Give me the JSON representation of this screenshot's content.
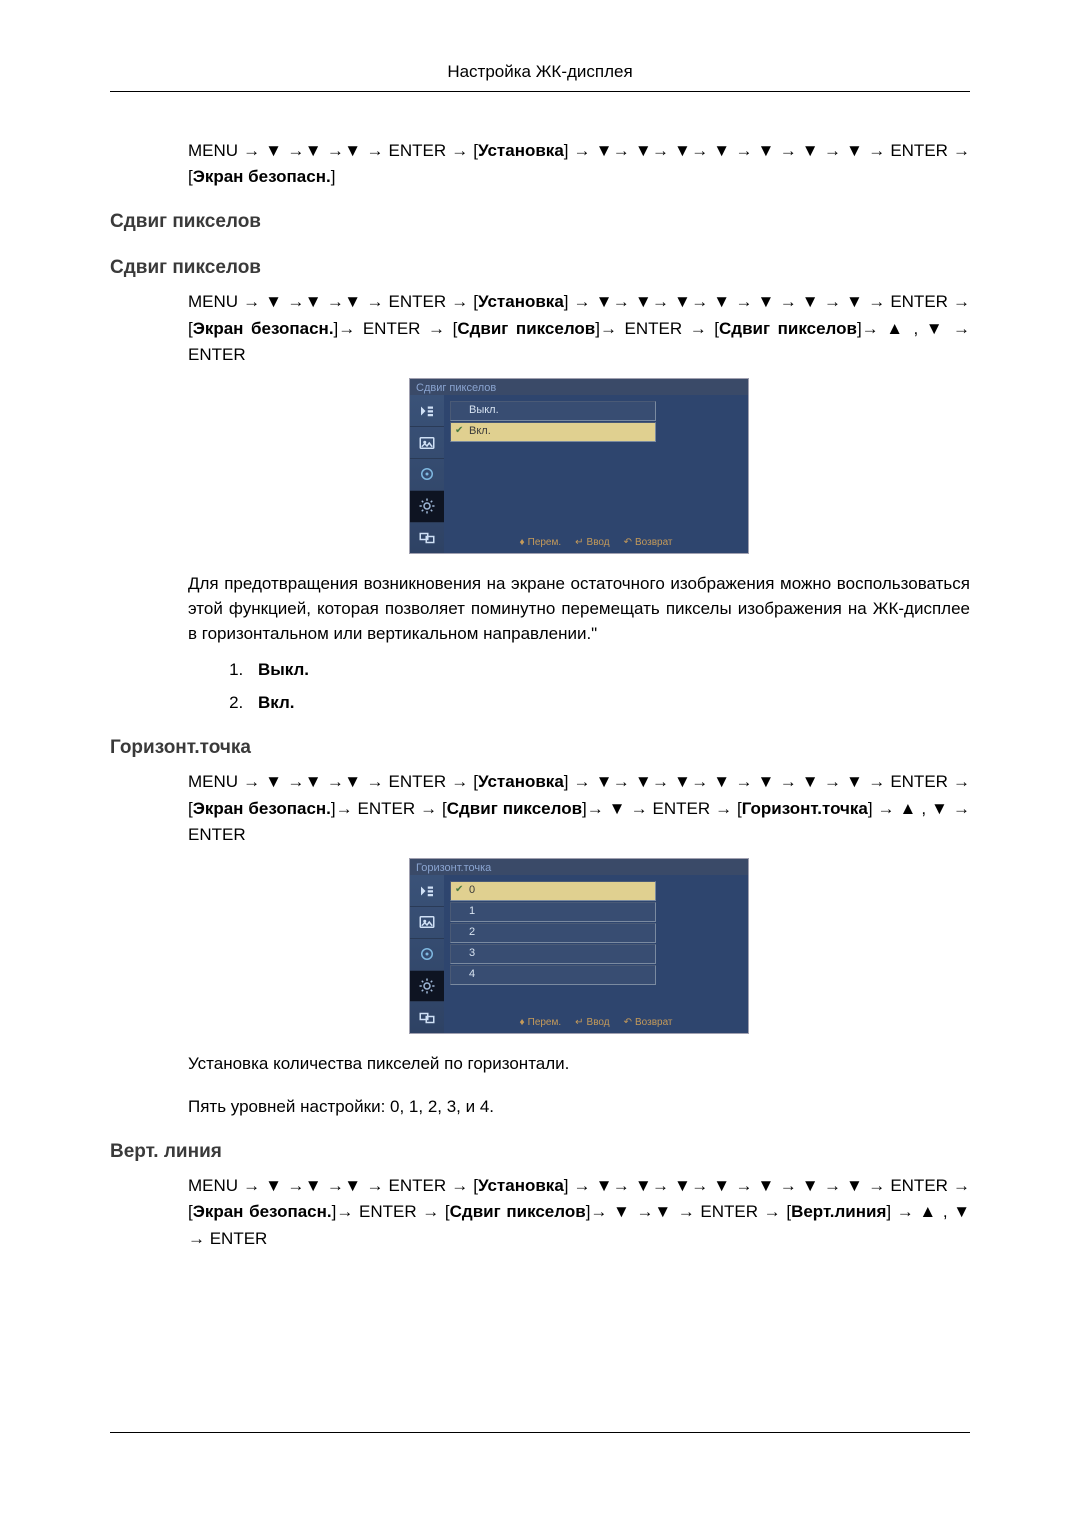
{
  "page": {
    "header": "Настройка ЖК-дисплея"
  },
  "nav_tokens": {
    "menu": "MENU",
    "enter": "ENTER",
    "arrow_right": "→",
    "arrow_down": "▼",
    "arrow_up": "▲",
    "bracket_install": "Установка",
    "bracket_screen_saf": "Экран безопасн.",
    "bracket_pixel_shift": "Сдвиг пикселов",
    "bracket_horiz_dot": "Горизонт.точка",
    "bracket_vert_line": "Верт.линия"
  },
  "section0": {
    "nav_html": "MENU → ▼ →▼ →▼ → ENTER → [<b>Установка</b>] → ▼→ ▼→ ▼→ ▼ → ▼ → ▼ → ▼ → ENTER → [<b>Экран безопасн.</b>]"
  },
  "section1": {
    "title_a": "Сдвиг пикселов",
    "title_b": "Сдвиг пикселов",
    "nav_html": "MENU → ▼ →▼ →▼ → ENTER → [<b>Установка</b>] → ▼→ ▼→ ▼→ ▼ → ▼ → ▼ → ▼ → ENTER → [<b>Экран безопасн.</b>]→ ENTER → [<b>Сдвиг пикселов</b>]→ ENTER → [<b>Сдвиг пикселов</b>]→ ▲ , ▼ → ENTER",
    "menu": {
      "title": "Сдвиг пикселов",
      "rows": [
        {
          "label": "Выкл.",
          "selected": false
        },
        {
          "label": "Вкл.",
          "selected": true
        }
      ],
      "footer": [
        "Перем.",
        "Ввод",
        "Возврат"
      ]
    },
    "body": "Для предотвращения возникновения на экране остаточного изображения можно воспользоваться этой функцией, которая позволяет поминутно перемещать пикселы изображения на ЖК-дисплее в горизонтальном или вертикальном направлении.\"",
    "options": [
      "Выкл.",
      "Вкл."
    ]
  },
  "section2": {
    "title": "Горизонт.точка",
    "nav_html": "MENU → ▼ →▼ →▼ → ENTER → [<b>Установка</b>] → ▼→ ▼→ ▼→ ▼ → ▼ → ▼ → ▼ → ENTER → [<b>Экран безопасн.</b>]→ ENTER → [<b>Сдвиг пикселов</b>]→ ▼ → ENTER → [<b>Горизонт.точка</b>] → ▲ , ▼ → ENTER",
    "menu": {
      "title": "Горизонт.точка",
      "rows": [
        {
          "label": "0",
          "selected": true
        },
        {
          "label": "1",
          "selected": false
        },
        {
          "label": "2",
          "selected": false
        },
        {
          "label": "3",
          "selected": false
        },
        {
          "label": "4",
          "selected": false
        }
      ],
      "footer": [
        "Перем.",
        "Ввод",
        "Возврат"
      ]
    },
    "body1": "Установка количества пикселей по горизонтали.",
    "body2": "Пять уровней настройки: 0, 1, 2, 3, и 4."
  },
  "section3": {
    "title": "Верт. линия",
    "nav_html": "MENU → ▼ →▼ →▼ → ENTER → [<b>Установка</b>] → ▼→ ▼→ ▼→ ▼ → ▼ → ▼ → ▼ → ENTER → [<b>Экран безопасн.</b>]→ ENTER → [<b>Сдвиг пикселов</b>]→ ▼ →▼ → ENTER → [<b>Верт.линия</b>] → ▲ , ▼ → ENTER"
  },
  "osd_colors": {
    "titlebar_bg": "#3a4a68",
    "titlebar_fg": "#8aa4d0",
    "sidebar_grad_top": "#3a5278",
    "sidebar_grad_bot": "#2e4264",
    "sidebar_dark": "#0e1422",
    "main_bg": "#2e456e",
    "row_bg": "#384d72",
    "row_selected_bg": "#e0d090",
    "row_fg": "#d6e2f0",
    "footer_fg": "#c49a5a"
  }
}
